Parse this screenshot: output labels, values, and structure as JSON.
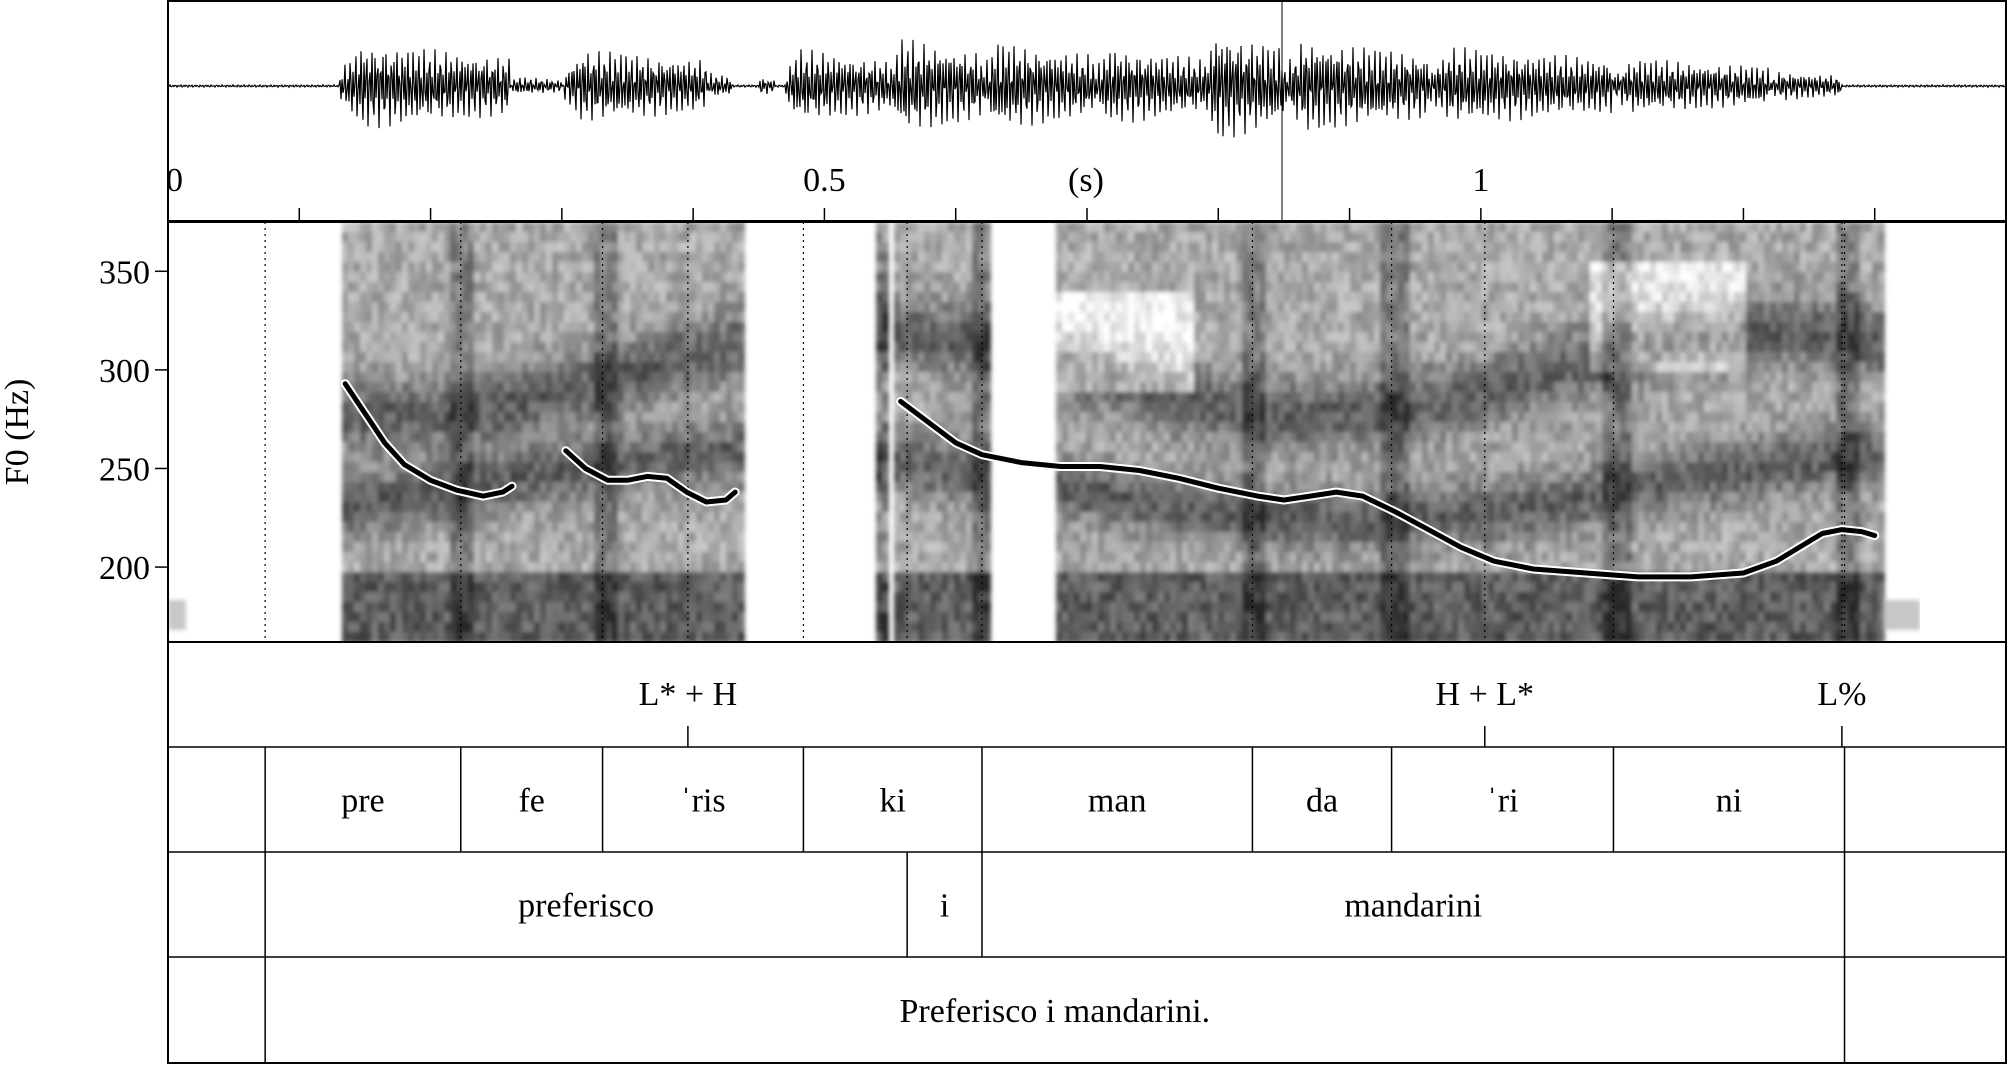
{
  "waveform": {
    "time_ticks": [
      {
        "label": "0",
        "t": 0
      },
      {
        "label": "0.5",
        "t": 0.5
      },
      {
        "label": "1",
        "t": 1.0
      }
    ],
    "unit_label": "(s)",
    "minor_tick_step": 0.1,
    "duration_s": 1.4
  },
  "pitch_panel": {
    "ylabel": "F0 (Hz)",
    "yticks": [
      200,
      250,
      300,
      350
    ],
    "ylim": [
      162,
      375
    ],
    "contour": [
      [
        [
          0.135,
          293
        ],
        [
          0.15,
          278
        ],
        [
          0.165,
          263
        ],
        [
          0.18,
          252
        ],
        [
          0.2,
          244
        ],
        [
          0.22,
          239
        ],
        [
          0.24,
          236
        ],
        [
          0.255,
          238
        ],
        [
          0.262,
          241
        ]
      ],
      [
        [
          0.303,
          259
        ],
        [
          0.318,
          250
        ],
        [
          0.335,
          244
        ],
        [
          0.35,
          244
        ],
        [
          0.365,
          246
        ],
        [
          0.38,
          245
        ],
        [
          0.395,
          238
        ],
        [
          0.41,
          233
        ],
        [
          0.425,
          234
        ],
        [
          0.432,
          238
        ]
      ],
      [
        [
          0.558,
          284
        ],
        [
          0.58,
          273
        ],
        [
          0.6,
          263
        ],
        [
          0.62,
          257
        ],
        [
          0.65,
          253
        ],
        [
          0.68,
          251
        ],
        [
          0.71,
          251
        ],
        [
          0.74,
          249
        ],
        [
          0.77,
          245
        ],
        [
          0.8,
          240
        ],
        [
          0.83,
          236
        ],
        [
          0.85,
          234
        ],
        [
          0.87,
          236
        ],
        [
          0.89,
          238
        ],
        [
          0.91,
          236
        ],
        [
          0.935,
          228
        ],
        [
          0.96,
          219
        ],
        [
          0.985,
          210
        ],
        [
          1.01,
          203
        ],
        [
          1.04,
          199
        ],
        [
          1.08,
          197
        ],
        [
          1.12,
          195
        ],
        [
          1.16,
          195
        ],
        [
          1.2,
          197
        ],
        [
          1.225,
          203
        ],
        [
          1.245,
          211
        ],
        [
          1.26,
          217
        ],
        [
          1.275,
          219
        ],
        [
          1.29,
          218
        ],
        [
          1.3,
          216
        ]
      ]
    ],
    "voiced_regions": [
      [
        0.131,
        0.435
      ],
      [
        0.55,
        0.626
      ],
      [
        0.674,
        1.303
      ]
    ],
    "burst_regions": [
      [
        0.3,
        0.31
      ],
      [
        0.536,
        0.548
      ]
    ],
    "silence_regions": [
      [
        0.0,
        0.131
      ],
      [
        0.435,
        0.55
      ],
      [
        1.303,
        1.4
      ]
    ]
  },
  "tiers": {
    "tones": [
      {
        "label": "L* + H",
        "t": 0.396
      },
      {
        "label": "H + L*",
        "t": 1.003
      },
      {
        "label": "L%",
        "t": 1.275
      }
    ],
    "syllables": [
      {
        "label": "",
        "start": 0.0,
        "end": 0.074
      },
      {
        "label": "pre",
        "start": 0.074,
        "end": 0.223
      },
      {
        "label": "fe",
        "start": 0.223,
        "end": 0.331
      },
      {
        "label": "ˈris",
        "start": 0.331,
        "end": 0.484
      },
      {
        "label": "ki",
        "start": 0.484,
        "end": 0.62
      },
      {
        "label": "man",
        "start": 0.62,
        "end": 0.826
      },
      {
        "label": "da",
        "start": 0.826,
        "end": 0.932
      },
      {
        "label": "ˈri",
        "start": 0.932,
        "end": 1.101
      },
      {
        "label": "ni",
        "start": 1.101,
        "end": 1.277
      },
      {
        "label": "",
        "start": 1.277,
        "end": 1.4
      }
    ],
    "words": [
      {
        "label": "",
        "start": 0.0,
        "end": 0.074
      },
      {
        "label": "preferisco",
        "start": 0.074,
        "end": 0.563
      },
      {
        "label": "i",
        "start": 0.563,
        "end": 0.62
      },
      {
        "label": "mandarini",
        "start": 0.62,
        "end": 1.277
      },
      {
        "label": "",
        "start": 1.277,
        "end": 1.4
      }
    ],
    "sentence": [
      {
        "label": "",
        "start": 0.0,
        "end": 0.074
      },
      {
        "label": "Preferisco i mandarini.",
        "start": 0.074,
        "end": 1.277
      },
      {
        "label": "",
        "start": 1.277,
        "end": 1.4
      }
    ]
  }
}
